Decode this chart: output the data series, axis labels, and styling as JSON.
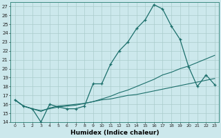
{
  "xlabel": "Humidex (Indice chaleur)",
  "background_color": "#cce8ec",
  "grid_color": "#aacccc",
  "line_color": "#1a6e6a",
  "xlim": [
    -0.5,
    23.5
  ],
  "ylim": [
    14,
    27.5
  ],
  "xticks": [
    0,
    1,
    2,
    3,
    4,
    5,
    6,
    7,
    8,
    9,
    10,
    11,
    12,
    13,
    14,
    15,
    16,
    17,
    18,
    19,
    20,
    21,
    22,
    23
  ],
  "yticks": [
    14,
    15,
    16,
    17,
    18,
    19,
    20,
    21,
    22,
    23,
    24,
    25,
    26,
    27
  ],
  "line1_x": [
    0,
    1,
    2,
    3,
    4,
    5,
    6,
    7,
    8,
    9,
    10,
    11,
    12,
    13,
    14,
    15,
    16,
    17,
    18,
    19,
    20,
    21,
    22,
    23
  ],
  "line1_y": [
    16.5,
    15.8,
    15.5,
    14.0,
    16.0,
    15.7,
    15.5,
    15.5,
    15.8,
    18.3,
    18.3,
    20.5,
    22.0,
    23.0,
    24.5,
    25.5,
    27.2,
    26.7,
    24.8,
    23.3,
    20.2,
    18.0,
    19.3,
    18.2
  ],
  "line2_x": [
    0,
    1,
    2,
    3,
    4,
    5,
    6,
    7,
    8,
    9,
    10,
    11,
    12,
    13,
    14,
    15,
    16,
    17,
    18,
    19,
    20,
    21,
    22,
    23
  ],
  "line2_y": [
    16.5,
    15.8,
    15.5,
    15.3,
    15.5,
    15.7,
    15.8,
    15.9,
    16.1,
    16.3,
    16.6,
    16.9,
    17.3,
    17.6,
    18.0,
    18.4,
    18.8,
    19.3,
    19.6,
    20.0,
    20.3,
    20.7,
    21.1,
    21.5
  ],
  "line3_x": [
    0,
    1,
    2,
    3,
    4,
    5,
    6,
    7,
    8,
    9,
    10,
    11,
    12,
    13,
    14,
    15,
    16,
    17,
    18,
    19,
    20,
    21,
    22,
    23
  ],
  "line3_y": [
    16.5,
    15.8,
    15.5,
    15.2,
    15.6,
    15.8,
    15.9,
    16.0,
    16.1,
    16.3,
    16.5,
    16.6,
    16.8,
    17.0,
    17.1,
    17.3,
    17.5,
    17.7,
    17.9,
    18.1,
    18.3,
    18.5,
    18.7,
    18.9
  ]
}
